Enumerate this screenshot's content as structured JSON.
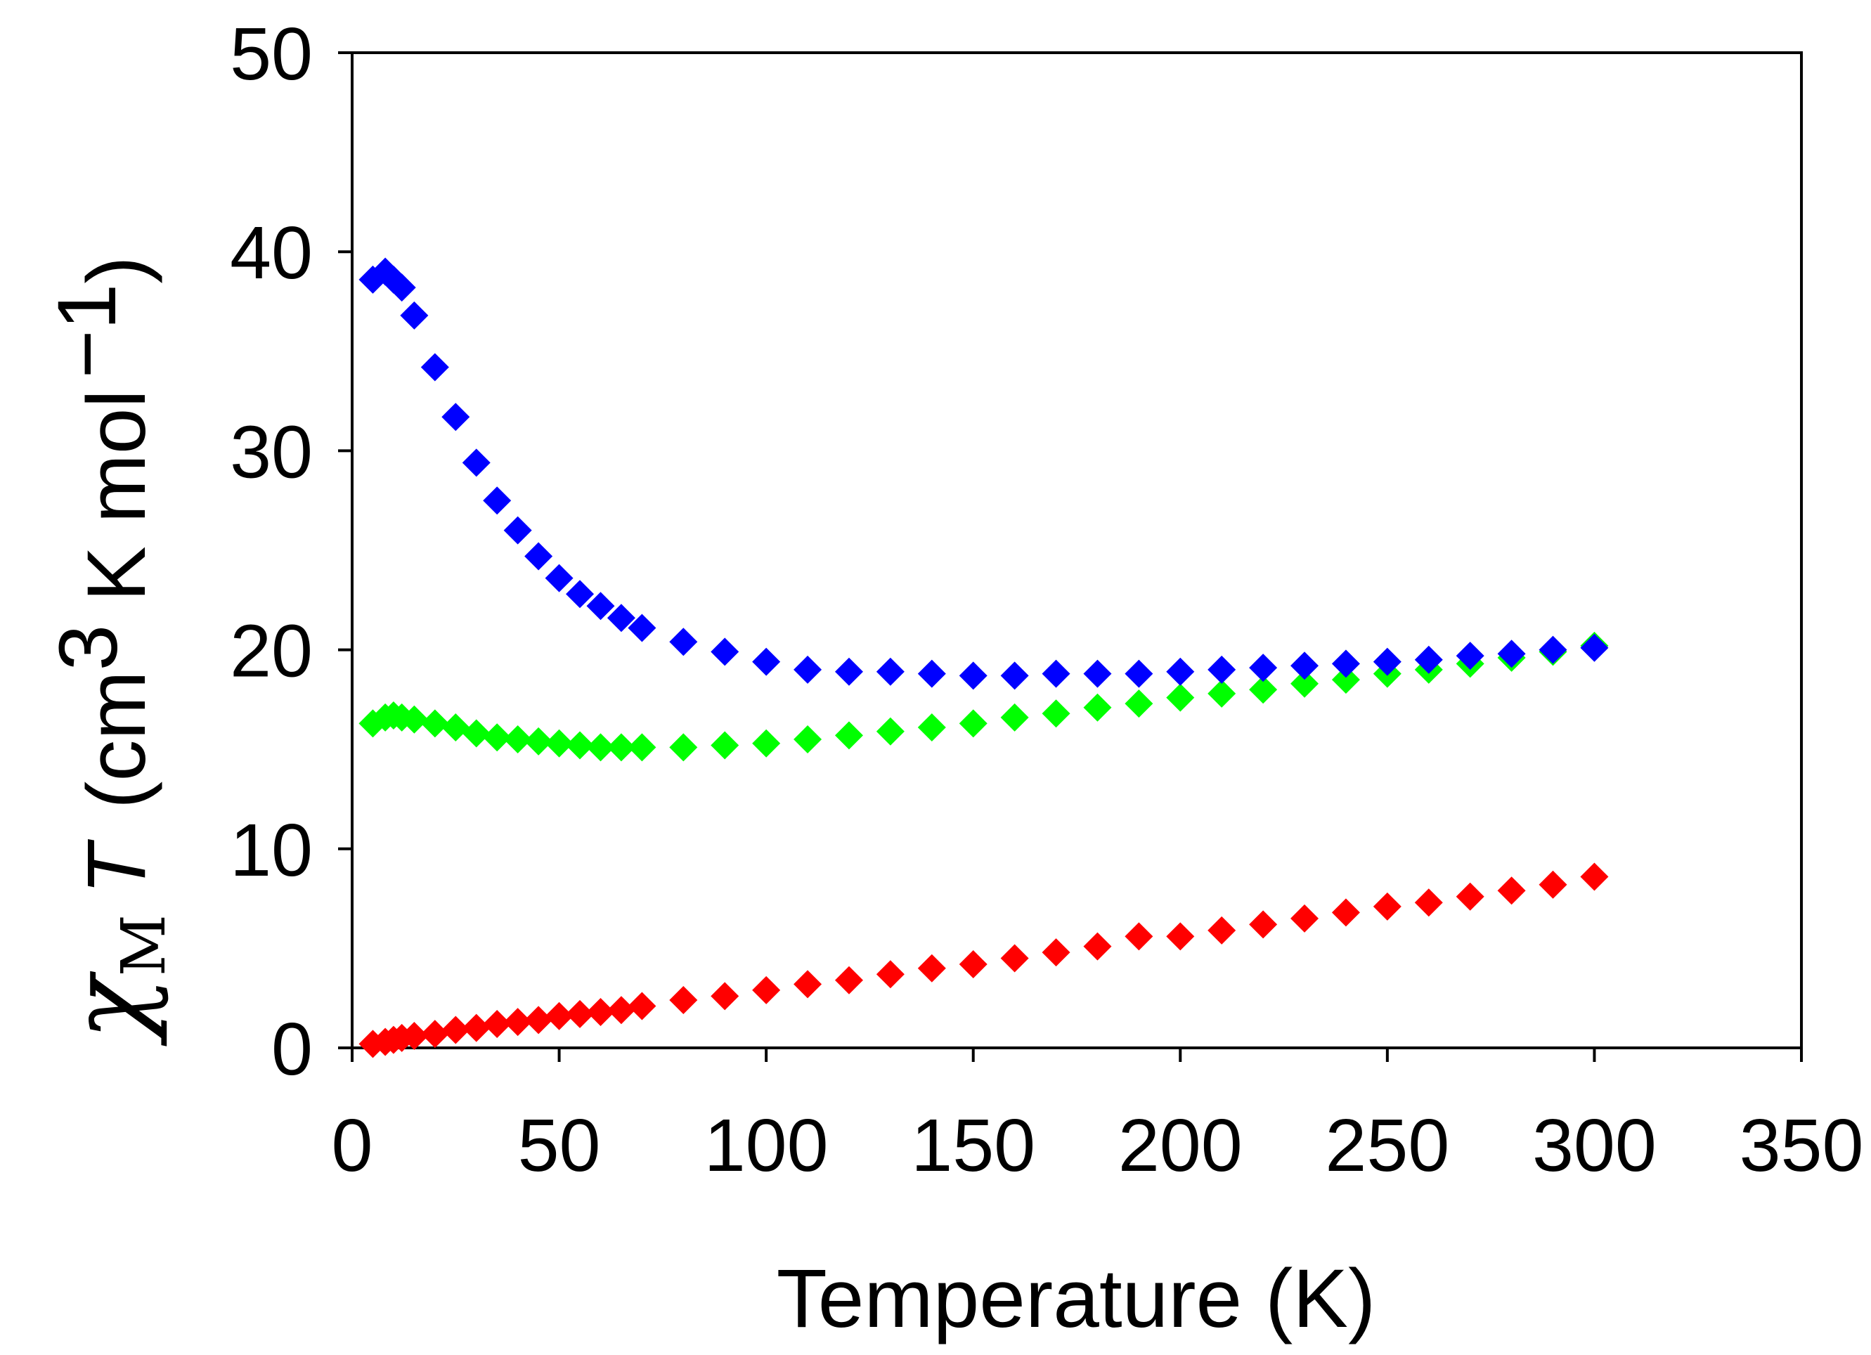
{
  "chart_data": {
    "type": "scatter",
    "title": "",
    "xlabel": "Temperature (K)",
    "ylabel": {
      "symbol": "χ",
      "subscript": "M",
      "variable": "T",
      "units_prefix": "(cm",
      "units_exp1": "3",
      "units_middle": " K mol",
      "units_exp2": "−1",
      "units_suffix": ")"
    },
    "xlim": [
      0,
      350
    ],
    "ylim": [
      0,
      50
    ],
    "xticks": [
      "0",
      "50",
      "100",
      "150",
      "200",
      "250",
      "300",
      "350"
    ],
    "yticks": [
      "0",
      "10",
      "20",
      "30",
      "40",
      "50"
    ],
    "marker": "diamond",
    "series": [
      {
        "name": "blue",
        "color": "#0000ff",
        "x": [
          5,
          8,
          10,
          12,
          15,
          20,
          25,
          30,
          35,
          40,
          45,
          50,
          55,
          60,
          65,
          70,
          80,
          90,
          100,
          110,
          120,
          130,
          140,
          150,
          160,
          170,
          180,
          190,
          200,
          210,
          220,
          230,
          240,
          250,
          260,
          270,
          280,
          290,
          300
        ],
        "y": [
          38.6,
          39.0,
          38.6,
          38.2,
          36.8,
          34.2,
          31.7,
          29.4,
          27.5,
          26.0,
          24.7,
          23.6,
          22.8,
          22.2,
          21.6,
          21.1,
          20.4,
          19.9,
          19.4,
          19.0,
          18.9,
          18.9,
          18.8,
          18.7,
          18.7,
          18.8,
          18.8,
          18.8,
          18.9,
          19.0,
          19.1,
          19.2,
          19.3,
          19.4,
          19.5,
          19.7,
          19.8,
          20.0,
          20.1
        ]
      },
      {
        "name": "green",
        "color": "#00ff00",
        "x": [
          5,
          8,
          10,
          12,
          15,
          20,
          25,
          30,
          35,
          40,
          45,
          50,
          55,
          60,
          65,
          70,
          80,
          90,
          100,
          110,
          120,
          130,
          140,
          150,
          160,
          170,
          180,
          190,
          200,
          210,
          220,
          230,
          240,
          250,
          260,
          270,
          280,
          290,
          300
        ],
        "y": [
          16.3,
          16.6,
          16.7,
          16.6,
          16.5,
          16.3,
          16.1,
          15.8,
          15.6,
          15.5,
          15.4,
          15.3,
          15.2,
          15.1,
          15.1,
          15.1,
          15.1,
          15.2,
          15.3,
          15.5,
          15.7,
          15.9,
          16.1,
          16.3,
          16.6,
          16.8,
          17.1,
          17.3,
          17.6,
          17.8,
          18.0,
          18.3,
          18.5,
          18.8,
          19.0,
          19.3,
          19.6,
          19.9,
          20.2
        ]
      },
      {
        "name": "red",
        "color": "#ff0000",
        "x": [
          5,
          8,
          10,
          12,
          15,
          20,
          25,
          30,
          35,
          40,
          45,
          50,
          55,
          60,
          65,
          70,
          80,
          90,
          100,
          110,
          120,
          130,
          140,
          150,
          160,
          170,
          180,
          190,
          200,
          210,
          220,
          230,
          240,
          250,
          260,
          270,
          280,
          290,
          300
        ],
        "y": [
          0.2,
          0.3,
          0.4,
          0.5,
          0.6,
          0.7,
          0.9,
          1.0,
          1.2,
          1.3,
          1.4,
          1.6,
          1.7,
          1.8,
          1.9,
          2.1,
          2.4,
          2.6,
          2.9,
          3.2,
          3.4,
          3.7,
          4.0,
          4.2,
          4.5,
          4.8,
          5.1,
          5.6,
          5.6,
          5.9,
          6.2,
          6.5,
          6.8,
          7.1,
          7.3,
          7.6,
          7.9,
          8.2,
          8.6
        ]
      }
    ]
  }
}
